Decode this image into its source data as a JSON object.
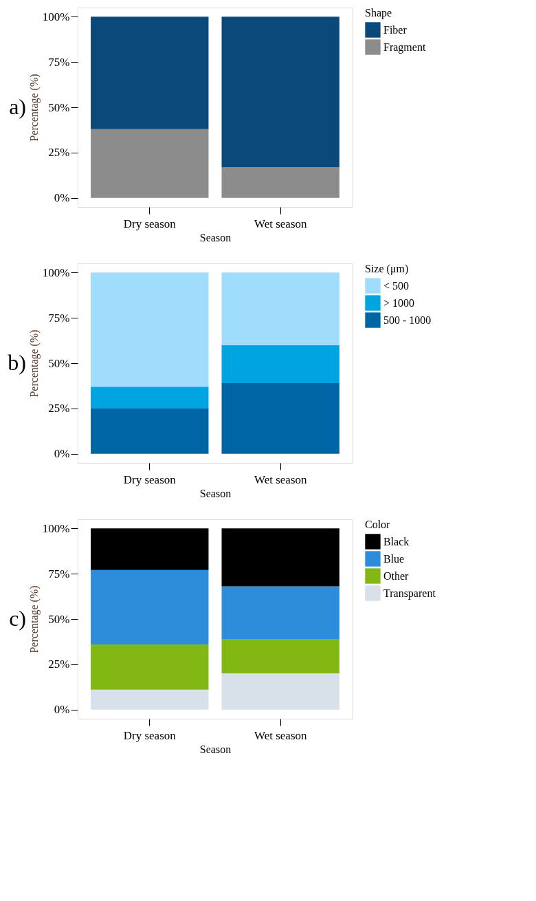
{
  "chart_data": [
    {
      "type": "bar",
      "stacked": true,
      "categories": [
        "Dry season",
        "Wet season"
      ],
      "xlabel": "Season",
      "ylabel": "Percentage (%)",
      "legend_title": "Shape",
      "legend": "right",
      "grid": false,
      "annotations": [
        "a)"
      ],
      "ylim": [
        -5,
        105
      ],
      "yticks": [
        {
          "value": 0,
          "label": "0%"
        },
        {
          "value": 25,
          "label": "25%"
        },
        {
          "value": 50,
          "label": "50%"
        },
        {
          "value": 75,
          "label": "75%"
        },
        {
          "value": 100,
          "label": "100%"
        }
      ],
      "series": [
        {
          "name": "Fragment",
          "color": "#8c8c8c",
          "values": [
            38,
            17
          ]
        },
        {
          "name": "Fiber",
          "color": "#0b497b",
          "values": [
            62,
            83
          ]
        }
      ]
    },
    {
      "type": "bar",
      "stacked": true,
      "categories": [
        "Dry season",
        "Wet season"
      ],
      "xlabel": "Season",
      "ylabel": "Percentage (%)",
      "legend_title": "Size (μm)",
      "legend": "right",
      "grid": false,
      "annotations": [
        "b)"
      ],
      "ylim": [
        -5,
        105
      ],
      "yticks": [
        {
          "value": 0,
          "label": "0%"
        },
        {
          "value": 25,
          "label": "25%"
        },
        {
          "value": 50,
          "label": "50%"
        },
        {
          "value": 75,
          "label": "75%"
        },
        {
          "value": 100,
          "label": "100%"
        }
      ],
      "series": [
        {
          "name": "500 - 1000",
          "color": "#0065a4",
          "values": [
            25,
            39
          ]
        },
        {
          "name": "> 1000",
          "color": "#00a4e0",
          "values": [
            12,
            21
          ]
        },
        {
          "name": "< 500",
          "color": "#a0dcfb",
          "values": [
            63,
            40
          ]
        }
      ]
    },
    {
      "type": "bar",
      "stacked": true,
      "categories": [
        "Dry season",
        "Wet season"
      ],
      "xlabel": "Season",
      "ylabel": "Percentage (%)",
      "legend_title": "Color",
      "legend": "right",
      "grid": false,
      "annotations": [
        "c)"
      ],
      "ylim": [
        -5,
        105
      ],
      "yticks": [
        {
          "value": 0,
          "label": "0%"
        },
        {
          "value": 25,
          "label": "25%"
        },
        {
          "value": 50,
          "label": "50%"
        },
        {
          "value": 75,
          "label": "75%"
        },
        {
          "value": 100,
          "label": "100%"
        }
      ],
      "series": [
        {
          "name": "Transparent",
          "color": "#d8e1e9",
          "values": [
            11,
            20
          ]
        },
        {
          "name": "Other",
          "color": "#83b713",
          "values": [
            25,
            19
          ]
        },
        {
          "name": "Blue",
          "color": "#2e8ddb",
          "values": [
            41,
            29
          ]
        },
        {
          "name": "Black",
          "color": "#000000",
          "values": [
            23,
            32
          ]
        }
      ]
    }
  ]
}
